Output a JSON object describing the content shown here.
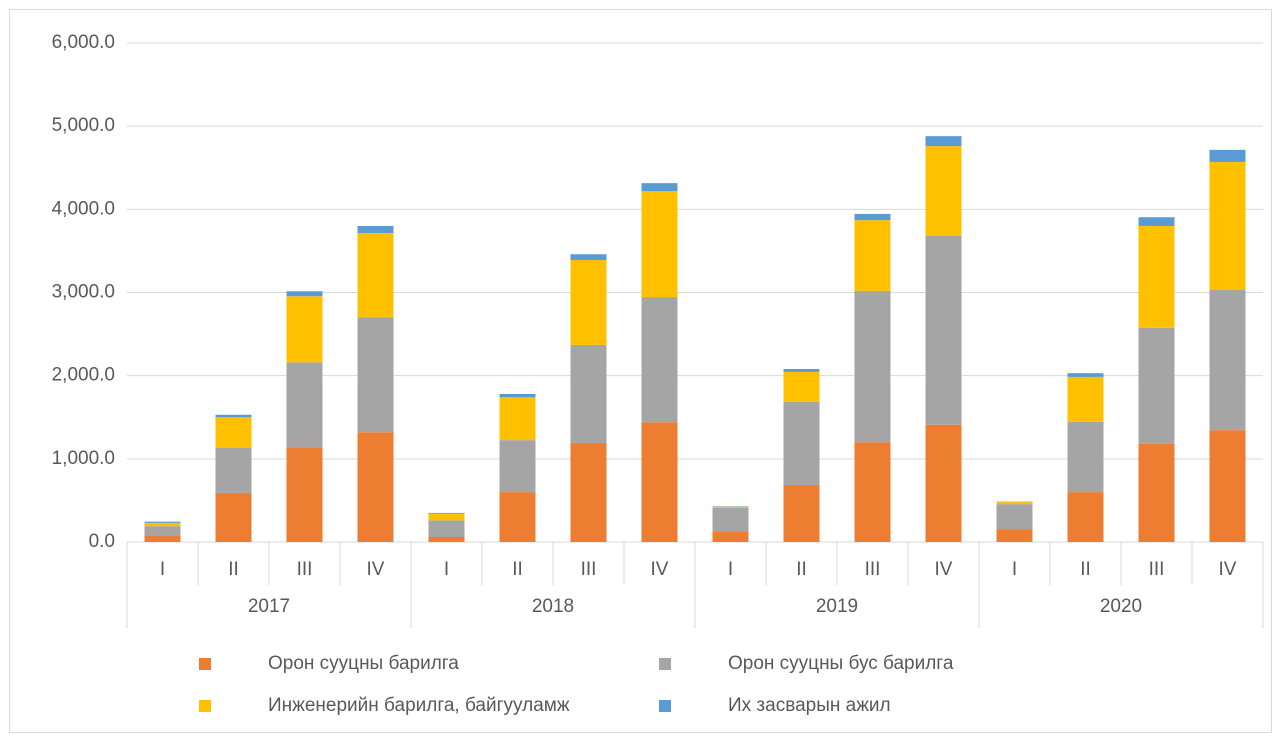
{
  "chart_data": {
    "type": "bar",
    "stacked": true,
    "categories": [
      "I",
      "II",
      "III",
      "IV",
      "I",
      "II",
      "III",
      "IV",
      "I",
      "II",
      "III",
      "IV",
      "I",
      "II",
      "III",
      "IV"
    ],
    "groups": [
      "2017",
      "2018",
      "2019",
      "2020"
    ],
    "series": [
      {
        "name": "Орон сууцны барилга",
        "color": "#ed7d31",
        "values": [
          80,
          590,
          1140,
          1320,
          60,
          600,
          1190,
          1440,
          120,
          685,
          1200,
          1410,
          155,
          600,
          1180,
          1345
        ]
      },
      {
        "name": "Орон сууцны бус барилга",
        "color": "#a5a5a5",
        "values": [
          110,
          540,
          1020,
          1380,
          200,
          625,
          1180,
          1505,
          290,
          1000,
          1820,
          2270,
          300,
          845,
          1395,
          1685
        ]
      },
      {
        "name": "Инженерийн барилга, байгууламж",
        "color": "#ffc000",
        "values": [
          40,
          370,
          795,
          1015,
          80,
          515,
          1020,
          1275,
          15,
          360,
          850,
          1080,
          25,
          540,
          1225,
          1540
        ]
      },
      {
        "name": "Их засварын ажил",
        "color": "#5b9bd5",
        "values": [
          15,
          30,
          60,
          85,
          10,
          40,
          70,
          95,
          5,
          35,
          75,
          120,
          5,
          45,
          105,
          145
        ]
      }
    ],
    "ylim": [
      0,
      6000
    ],
    "yticks": [
      {
        "value": 0,
        "label": "0.0"
      },
      {
        "value": 1000,
        "label": "1,000.0"
      },
      {
        "value": 2000,
        "label": "2,000.0"
      },
      {
        "value": 3000,
        "label": "3,000.0"
      },
      {
        "value": 4000,
        "label": "4,000.0"
      },
      {
        "value": 5000,
        "label": "5,000.0"
      },
      {
        "value": 6000,
        "label": "6,000.0"
      }
    ],
    "grid": true
  }
}
